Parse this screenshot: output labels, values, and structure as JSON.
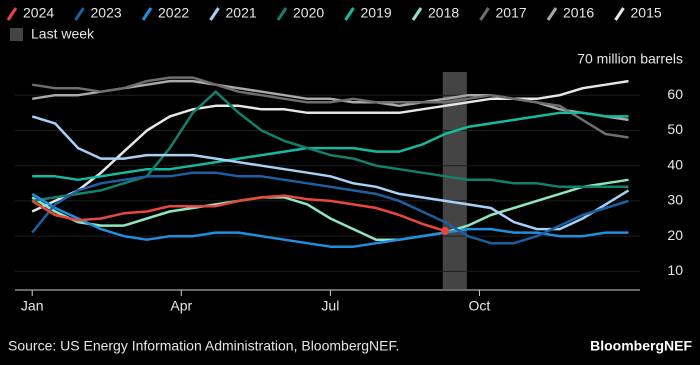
{
  "chart_data": {
    "type": "line",
    "x": [
      0,
      2,
      4,
      6,
      8,
      10,
      12,
      14,
      16,
      18,
      20,
      22,
      24,
      26,
      28,
      30,
      32,
      34,
      36,
      38,
      40,
      42,
      44,
      46,
      48,
      50,
      52
    ],
    "xlim": [
      -1.5,
      53
    ],
    "xticks": [
      {
        "value": 0,
        "label": "Jan"
      },
      {
        "value": 13,
        "label": "Apr"
      },
      {
        "value": 26,
        "label": "Jul"
      },
      {
        "value": 39,
        "label": "Oct"
      }
    ],
    "ylim": [
      5,
      70
    ],
    "yticks": [
      10,
      20,
      30,
      40,
      50,
      60,
      {
        "value": 70,
        "label": "70 million barrels"
      }
    ],
    "grid": true,
    "highlight": {
      "name": "Last week",
      "x": [
        35.8,
        37.9
      ],
      "color": "#444444"
    },
    "series": [
      {
        "name": "2024",
        "color": "#e8473c",
        "values": [
          30,
          26,
          24.5,
          25,
          26.5,
          27,
          28.5,
          28.5,
          28.5,
          30,
          31,
          31.5,
          30.5,
          30,
          29,
          28,
          26,
          23.5,
          21.5,
          null,
          null,
          null,
          null,
          null,
          null,
          null,
          null
        ]
      },
      {
        "name": "2023",
        "color": "#1d5fa0",
        "values": [
          21,
          29,
          33,
          35,
          36,
          37,
          37,
          38,
          38,
          37,
          37,
          36,
          35,
          34,
          33,
          32,
          30,
          27,
          24,
          20,
          18,
          18,
          20,
          23,
          26,
          28,
          30
        ]
      },
      {
        "name": "2022",
        "color": "#1f8fe0",
        "values": [
          32,
          28,
          25,
          22,
          20,
          19,
          20,
          20,
          21,
          21,
          20,
          19,
          18,
          17,
          17,
          18,
          19,
          20,
          21,
          22,
          22,
          21,
          21,
          20,
          20,
          21,
          21
        ]
      },
      {
        "name": "2021",
        "color": "#a6d1f4",
        "values": [
          54,
          52,
          45,
          42,
          42,
          43,
          43,
          43,
          42,
          41,
          40,
          39,
          38,
          37,
          35,
          34,
          32,
          31,
          30,
          29,
          28,
          24,
          22,
          22,
          25,
          29,
          33
        ]
      },
      {
        "name": "2020",
        "color": "#13806c",
        "values": [
          30,
          31,
          32,
          33,
          35,
          37,
          45,
          55,
          61,
          55,
          50,
          47,
          45,
          43,
          42,
          40,
          39,
          38,
          37,
          36,
          36,
          35,
          35,
          34,
          34,
          34,
          34
        ]
      },
      {
        "name": "2019",
        "color": "#15b9a0",
        "values": [
          37,
          37,
          36,
          37,
          38,
          39,
          39,
          40,
          41,
          42,
          43,
          44,
          45,
          45,
          45,
          44,
          44,
          46,
          49,
          51,
          52,
          53,
          54,
          55,
          55,
          54,
          54
        ]
      },
      {
        "name": "2018",
        "color": "#8ee6bf",
        "values": [
          31,
          27,
          24,
          23,
          23,
          25,
          27,
          28,
          29,
          30,
          31,
          31,
          29,
          25,
          22,
          19,
          19,
          20,
          21,
          23,
          26,
          28,
          30,
          32,
          34,
          35,
          36
        ]
      },
      {
        "name": "2017",
        "color": "#6e6e6e",
        "values": [
          63,
          62,
          62,
          61,
          62,
          64,
          65,
          65,
          63,
          61,
          60,
          59,
          58,
          58,
          59,
          58,
          58,
          58,
          58,
          59,
          60,
          59,
          58,
          57,
          53,
          49,
          48
        ]
      },
      {
        "name": "2016",
        "color": "#a9a9a9",
        "values": [
          59,
          60,
          60,
          61,
          62,
          63,
          64,
          64,
          63,
          62,
          61,
          60,
          59,
          59,
          58,
          58,
          57,
          58,
          59,
          60,
          60,
          59,
          58,
          56,
          55,
          54,
          53
        ]
      },
      {
        "name": "2015",
        "color": "#e6e6e6",
        "values": [
          27,
          30,
          33,
          38,
          44,
          50,
          54,
          56,
          57,
          57,
          56,
          56,
          55,
          55,
          55,
          55,
          55,
          56,
          57,
          58,
          59,
          59,
          59,
          60,
          62,
          63,
          64
        ]
      }
    ],
    "source": "Source: US Energy Information Administration, BloombergNEF.",
    "credit": "BloombergNEF"
  }
}
